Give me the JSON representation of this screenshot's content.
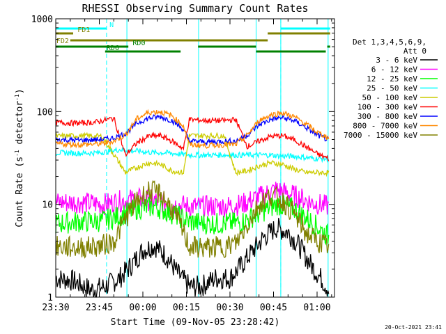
{
  "chart_data": {
    "type": "line",
    "title": "RHESSI Observing Summary Count Rates",
    "xlabel": "Start Time (09-Nov-05 23:28:42)",
    "ylabel_main": "Count Rate (s",
    "ylabel_exp1": "-1",
    "ylabel_mid": " detector",
    "ylabel_exp2": "-1",
    "ylabel_end": ")",
    "y_scale": "log",
    "ylim": [
      1,
      1000
    ],
    "xlim": [
      0,
      96
    ],
    "x_ticks": [
      {
        "t": 0,
        "label": "23:30"
      },
      {
        "t": 15,
        "label": "23:45"
      },
      {
        "t": 30,
        "label": "00:00"
      },
      {
        "t": 45,
        "label": "00:15"
      },
      {
        "t": 60,
        "label": "00:30"
      },
      {
        "t": 75,
        "label": "00:45"
      },
      {
        "t": 90,
        "label": "01:00"
      }
    ],
    "y_ticks": [
      {
        "v": 1,
        "label": "1"
      },
      {
        "v": 10,
        "label": "10"
      },
      {
        "v": 100,
        "label": "100"
      },
      {
        "v": 1000,
        "label": "1000"
      }
    ],
    "legend_header": [
      "Det 1,3,4,5,6,9,",
      "Att 0"
    ],
    "legend_position": "right",
    "series": [
      {
        "name": "3 - 6 keV",
        "color": "#000000",
        "values": [
          [
            0,
            1.6
          ],
          [
            6,
            1.5
          ],
          [
            12,
            1.2
          ],
          [
            17,
            1.3
          ],
          [
            22,
            1.6
          ],
          [
            26,
            2.2
          ],
          [
            30,
            3.2
          ],
          [
            34,
            3.6
          ],
          [
            38,
            2.8
          ],
          [
            42,
            1.8
          ],
          [
            46,
            1.3
          ],
          [
            50,
            1.3
          ],
          [
            55,
            1.6
          ],
          [
            60,
            1.6
          ],
          [
            64,
            2.2
          ],
          [
            68,
            3.2
          ],
          [
            72,
            4.5
          ],
          [
            76,
            5.6
          ],
          [
            80,
            5.0
          ],
          [
            84,
            3.5
          ],
          [
            88,
            2.2
          ],
          [
            92,
            1.5
          ],
          [
            94,
            1.2
          ]
        ]
      },
      {
        "name": "6 - 12 keV",
        "color": "#ff00ff",
        "values": [
          [
            0,
            10.5
          ],
          [
            8,
            10.5
          ],
          [
            16,
            10
          ],
          [
            22,
            10.8
          ],
          [
            28,
            11.5
          ],
          [
            34,
            11
          ],
          [
            40,
            10
          ],
          [
            46,
            9.5
          ],
          [
            52,
            9.5
          ],
          [
            58,
            9.5
          ],
          [
            64,
            10
          ],
          [
            70,
            12
          ],
          [
            76,
            14.5
          ],
          [
            82,
            12.5
          ],
          [
            88,
            10.5
          ],
          [
            94,
            9.5
          ]
        ]
      },
      {
        "name": "12 - 25 keV",
        "color": "#00ff00",
        "values": [
          [
            0,
            6.2
          ],
          [
            8,
            6.5
          ],
          [
            16,
            6.6
          ],
          [
            22,
            7.5
          ],
          [
            28,
            9
          ],
          [
            34,
            9.5
          ],
          [
            40,
            8
          ],
          [
            46,
            6.5
          ],
          [
            52,
            6.2
          ],
          [
            58,
            6.2
          ],
          [
            64,
            6.4
          ],
          [
            70,
            8
          ],
          [
            76,
            10
          ],
          [
            82,
            9
          ],
          [
            88,
            6.5
          ],
          [
            94,
            4.5
          ]
        ]
      },
      {
        "name": "25 - 50 keV",
        "color": "#00ffff",
        "values": [
          [
            0,
            36
          ],
          [
            8,
            35.5
          ],
          [
            14,
            36
          ],
          [
            18,
            37
          ],
          [
            22,
            39
          ],
          [
            26,
            38
          ],
          [
            30,
            37
          ],
          [
            34,
            36
          ],
          [
            38,
            36
          ],
          [
            42,
            35
          ],
          [
            46,
            34
          ],
          [
            50,
            34
          ],
          [
            54,
            34
          ],
          [
            58,
            34
          ],
          [
            62,
            34
          ],
          [
            66,
            34
          ],
          [
            70,
            34
          ],
          [
            74,
            34
          ],
          [
            78,
            33
          ],
          [
            82,
            33
          ],
          [
            86,
            32
          ],
          [
            90,
            31
          ],
          [
            94,
            31
          ]
        ]
      },
      {
        "name": "50 - 100 keV",
        "color": "#cccc00",
        "values": [
          [
            0,
            54
          ],
          [
            8,
            55
          ],
          [
            16,
            54
          ],
          [
            24,
            22
          ],
          [
            28,
            25
          ],
          [
            32,
            28
          ],
          [
            36,
            27
          ],
          [
            40,
            23
          ],
          [
            44,
            22
          ],
          [
            46,
            55
          ],
          [
            52,
            55
          ],
          [
            58,
            55
          ],
          [
            62,
            22
          ],
          [
            66,
            23
          ],
          [
            70,
            26
          ],
          [
            74,
            28
          ],
          [
            78,
            27
          ],
          [
            82,
            24
          ],
          [
            86,
            22
          ],
          [
            90,
            22
          ],
          [
            94,
            22
          ]
        ]
      },
      {
        "name": "100 - 300 keV",
        "color": "#ff0000",
        "values": [
          [
            0,
            76
          ],
          [
            8,
            75
          ],
          [
            14,
            77
          ],
          [
            20,
            85
          ],
          [
            24,
            34
          ],
          [
            28,
            46
          ],
          [
            32,
            54
          ],
          [
            36,
            55
          ],
          [
            40,
            48
          ],
          [
            44,
            40
          ],
          [
            46,
            82
          ],
          [
            52,
            80
          ],
          [
            58,
            80
          ],
          [
            62,
            82
          ],
          [
            66,
            42
          ],
          [
            70,
            48
          ],
          [
            74,
            54
          ],
          [
            78,
            55
          ],
          [
            82,
            50
          ],
          [
            86,
            42
          ],
          [
            90,
            35
          ],
          [
            94,
            31
          ]
        ]
      },
      {
        "name": "300 - 800 keV",
        "color": "#0000ff",
        "values": [
          [
            0,
            50
          ],
          [
            8,
            49
          ],
          [
            16,
            50
          ],
          [
            20,
            52
          ],
          [
            24,
            58
          ],
          [
            28,
            75
          ],
          [
            32,
            85
          ],
          [
            36,
            88
          ],
          [
            40,
            80
          ],
          [
            44,
            64
          ],
          [
            46,
            48
          ],
          [
            52,
            47
          ],
          [
            58,
            48
          ],
          [
            62,
            48
          ],
          [
            66,
            56
          ],
          [
            70,
            72
          ],
          [
            74,
            82
          ],
          [
            78,
            86
          ],
          [
            82,
            80
          ],
          [
            86,
            68
          ],
          [
            90,
            56
          ],
          [
            94,
            49
          ]
        ]
      },
      {
        "name": "800 - 7000 keV",
        "color": "#ff8800",
        "values": [
          [
            0,
            45
          ],
          [
            8,
            44
          ],
          [
            16,
            45
          ],
          [
            20,
            48
          ],
          [
            24,
            56
          ],
          [
            28,
            84
          ],
          [
            32,
            98
          ],
          [
            36,
            100
          ],
          [
            40,
            90
          ],
          [
            44,
            70
          ],
          [
            46,
            44
          ],
          [
            52,
            43
          ],
          [
            58,
            44
          ],
          [
            62,
            44
          ],
          [
            66,
            56
          ],
          [
            70,
            80
          ],
          [
            74,
            92
          ],
          [
            78,
            97
          ],
          [
            82,
            88
          ],
          [
            86,
            74
          ],
          [
            90,
            60
          ],
          [
            94,
            52
          ]
        ]
      },
      {
        "name": "7000 - 15000 keV",
        "color": "#808000",
        "values": [
          [
            0,
            3.5
          ],
          [
            8,
            3.4
          ],
          [
            16,
            3.6
          ],
          [
            20,
            4
          ],
          [
            24,
            7
          ],
          [
            28,
            11
          ],
          [
            32,
            14
          ],
          [
            36,
            13
          ],
          [
            40,
            9
          ],
          [
            44,
            5
          ],
          [
            46,
            3.5
          ],
          [
            52,
            3.4
          ],
          [
            58,
            3.5
          ],
          [
            62,
            3.8
          ],
          [
            66,
            6
          ],
          [
            70,
            10
          ],
          [
            74,
            12.5
          ],
          [
            78,
            11
          ],
          [
            82,
            8
          ],
          [
            86,
            5
          ],
          [
            90,
            4
          ],
          [
            94,
            3.5
          ]
        ]
      }
    ],
    "segments": [
      {
        "label": "N",
        "color": "#00ffff",
        "row": 0,
        "spans": [
          [
            0,
            17.5
          ],
          [
            77.5,
            94.5
          ]
        ]
      },
      {
        "label": "FD1",
        "color": "#808000",
        "row": 1,
        "spans": [
          [
            0,
            6
          ],
          [
            73,
            94.5
          ]
        ]
      },
      {
        "label": "FD2",
        "color": "#808000",
        "row": 2,
        "spans": [
          [
            5,
            73
          ]
        ]
      },
      {
        "label": "RD0",
        "color": "#008000",
        "row": 3,
        "spans": [
          [
            0,
            25
          ],
          [
            49,
            69
          ],
          [
            93.5,
            94.5
          ]
        ]
      },
      {
        "label": "RD6",
        "color": "#008000",
        "row": 4,
        "spans": [
          [
            17,
            43
          ],
          [
            69,
            93
          ]
        ]
      }
    ],
    "night_lines_dashed": [
      17.5,
      77.5
    ],
    "day_lines_solid": [
      24.5,
      49.2,
      69,
      77.5,
      93.8
    ]
  },
  "footer": {
    "timestamp": "20-Oct-2021 23:41"
  }
}
